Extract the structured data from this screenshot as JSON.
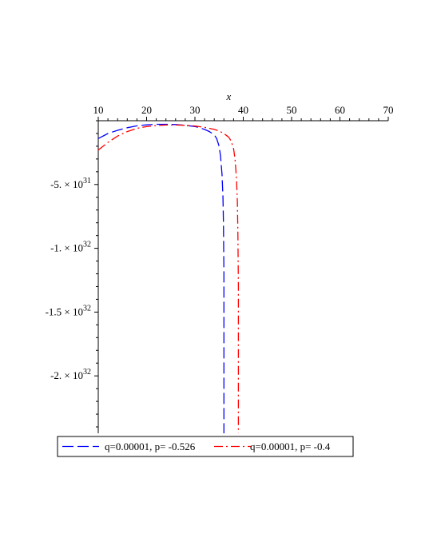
{
  "chart_data": {
    "type": "line",
    "title": "",
    "xlabel": "x",
    "ylabel": "",
    "x_axis_position": "top",
    "xlim": [
      10,
      70
    ],
    "ylim": [
      -2.45e+32,
      0
    ],
    "x_ticks": [
      {
        "value": 10,
        "label": "10"
      },
      {
        "value": 20,
        "label": "20"
      },
      {
        "value": 30,
        "label": "30"
      },
      {
        "value": 40,
        "label": "40"
      },
      {
        "value": 50,
        "label": "50"
      },
      {
        "value": 60,
        "label": "60"
      },
      {
        "value": 70,
        "label": "70"
      }
    ],
    "y_ticks": [
      {
        "value": -5e+31,
        "mantissa": "-5. × 10",
        "exponent": "31"
      },
      {
        "value": -1e+32,
        "mantissa": "-1. × 10",
        "exponent": "32"
      },
      {
        "value": -1.5e+32,
        "mantissa": "-1.5 × 10",
        "exponent": "32"
      },
      {
        "value": -2e+32,
        "mantissa": "-2. × 10",
        "exponent": "32"
      }
    ],
    "grid": false,
    "legend_position": "bottom",
    "series": [
      {
        "name": "q=0.00001, p= -0.526",
        "color": "#0000ff",
        "line_style": "dashed",
        "x": [
          10,
          12,
          14,
          16,
          18,
          20,
          22,
          24,
          26,
          28,
          30,
          31,
          32,
          33,
          34,
          34.5,
          35,
          35.3,
          35.6,
          35.8,
          35.9,
          36,
          36,
          36
        ],
        "y": [
          -1.4e+31,
          -1e+31,
          -7.5e+30,
          -5.5e+30,
          -4e+30,
          -3.2e+30,
          -2.8e+30,
          -2.8e+30,
          -3e+30,
          -3.6e+30,
          -4.6e+30,
          -5.5e+30,
          -6.8e+30,
          -8.5e+30,
          -1.1e+31,
          -1.4e+31,
          -2e+31,
          -2.8e+31,
          -4.2e+31,
          -6e+31,
          -8e+31,
          -1.2e+32,
          -1.8e+32,
          -2.45e+32
        ]
      },
      {
        "name": "q=0.00001, p= -0.4",
        "color": "#ff0000",
        "line_style": "dashdot",
        "x": [
          10,
          12,
          14,
          16,
          18,
          20,
          22,
          24,
          26,
          28,
          30,
          32,
          34,
          35,
          36,
          37,
          37.5,
          38,
          38.3,
          38.6,
          38.8,
          38.9,
          39,
          39,
          39
        ],
        "y": [
          -2.3e+31,
          -1.7e+31,
          -1.2e+31,
          -8.5e+30,
          -6e+30,
          -4.6e+30,
          -3.8e+30,
          -3.4e+30,
          -3.4e+30,
          -3.6e+30,
          -4.2e+30,
          -5.2e+30,
          -6.8e+30,
          -8e+30,
          -1e+31,
          -1.3e+31,
          -1.6e+31,
          -2.2e+31,
          -3e+31,
          -4.5e+31,
          -6.5e+31,
          -9e+31,
          -1.3e+32,
          -1.9e+32,
          -2.45e+32
        ]
      }
    ]
  }
}
